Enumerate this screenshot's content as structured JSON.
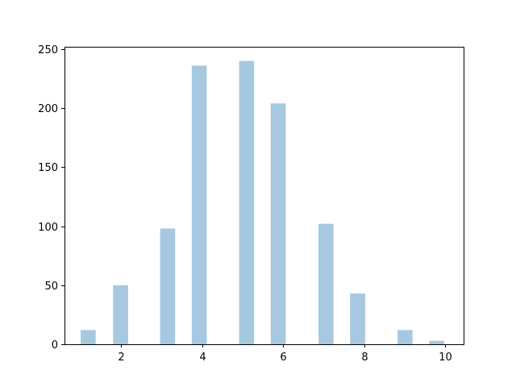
{
  "chart_data": {
    "type": "bar",
    "title": "",
    "xlabel": "",
    "ylabel": "",
    "xlim": [
      0.6,
      10.45
    ],
    "ylim": [
      0,
      252
    ],
    "xticks": [
      2,
      4,
      6,
      8,
      10
    ],
    "yticks": [
      0,
      50,
      100,
      150,
      200,
      250
    ],
    "bin_width": 0.37,
    "bar_color": "#a6c8e0",
    "grid": false,
    "legend": "none",
    "bars": [
      {
        "x": 1.0,
        "value": 12
      },
      {
        "x": 1.8,
        "value": 50
      },
      {
        "x": 2.96,
        "value": 98
      },
      {
        "x": 3.74,
        "value": 236
      },
      {
        "x": 4.91,
        "value": 240
      },
      {
        "x": 5.69,
        "value": 204
      },
      {
        "x": 6.87,
        "value": 102
      },
      {
        "x": 7.65,
        "value": 43
      },
      {
        "x": 8.82,
        "value": 12
      },
      {
        "x": 9.6,
        "value": 3
      }
    ]
  }
}
